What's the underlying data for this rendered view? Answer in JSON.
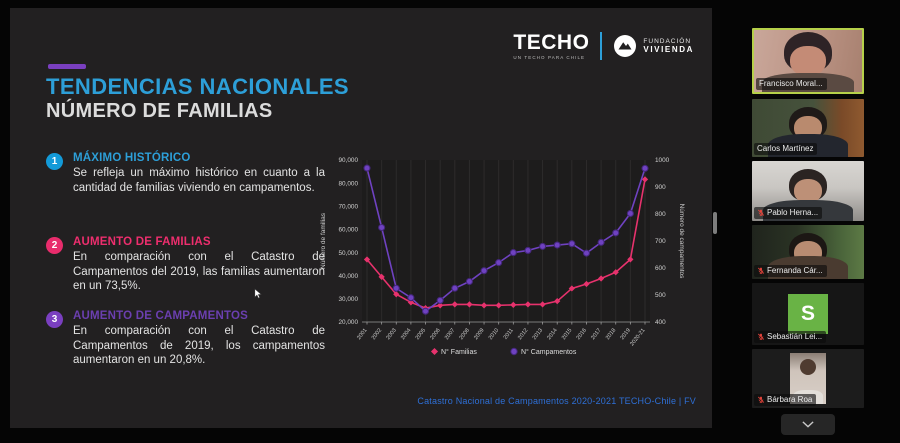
{
  "slide": {
    "accent_color": "#7a3fc0",
    "title": "TENDENCIAS NACIONALES",
    "title_color": "#2d9fd8",
    "subtitle": "NÚMERO DE FAMILIAS",
    "points": [
      {
        "number": "1",
        "heading": "MÁXIMO HISTÓRICO",
        "circle_color": "#139ad8",
        "heading_color": "#2d9fd8",
        "body": "Se refleja un máximo histórico en cuanto a la cantidad de familias viviendo en campamentos."
      },
      {
        "number": "2",
        "heading": "AUMENTO DE FAMILIAS",
        "circle_color": "#e82c6c",
        "heading_color": "#ee2e6e",
        "body": "En comparación con el Catastro de Campamentos del 2019, las familias aumentaron en un 73,5%."
      },
      {
        "number": "3",
        "heading": "AUMENTO DE CAMPAMENTOS",
        "circle_color": "#7a3fc0",
        "heading_color": "#6b3fb0",
        "body": "En comparación con el Catastro de Campamentos de 2019, los campamentos aumentaron en un 20,8%."
      }
    ],
    "caption": "Catastro Nacional de Campamentos 2020-2021 TECHO-Chile | FV",
    "logos": {
      "techo": "TECHO",
      "techo_tagline": "UN TECHO PARA CHILE",
      "fundacion_line1": "FUNDACIÓN",
      "fundacion_line2": "VIVIENDA"
    }
  },
  "chart_data": {
    "type": "line",
    "categories": [
      "2001",
      "2002",
      "2003",
      "2004",
      "2005",
      "2006",
      "2007",
      "2008",
      "2009",
      "2010",
      "2011",
      "2012",
      "2013",
      "2014",
      "2015",
      "2016",
      "2017",
      "2018",
      "2019",
      "2020-21"
    ],
    "series": [
      {
        "name": "N° Familias",
        "axis": "left",
        "color": "#e7326d",
        "marker": "diamond",
        "values": [
          47000,
          39500,
          32000,
          28500,
          26000,
          27200,
          27600,
          27600,
          27200,
          27200,
          27400,
          27600,
          27600,
          29000,
          34500,
          36400,
          38800,
          41500,
          47050,
          81643
        ]
      },
      {
        "name": "N° Campamentos",
        "axis": "right",
        "color": "#6f42c1",
        "marker": "circle",
        "values": [
          970,
          750,
          525,
          490,
          440,
          480,
          525,
          550,
          590,
          620,
          657,
          665,
          680,
          685,
          690,
          655,
          695,
          730,
          802,
          969
        ]
      }
    ],
    "ylabel_left": "Número de familias",
    "ylabel_right": "Número de campamentos",
    "ylim_left": [
      20000,
      90000
    ],
    "ylim_right": [
      400,
      1000
    ],
    "yticks_left": [
      "20,000",
      "30,000",
      "40,000",
      "50,000",
      "60,000",
      "70,000",
      "80,000",
      "90,000"
    ],
    "yticks_right": [
      "400",
      "500",
      "600",
      "700",
      "800",
      "900",
      "1000"
    ],
    "grid": "vertical",
    "legend_position": "bottom"
  },
  "participants": [
    {
      "name": "Francisco Moral...",
      "active_speaker": true,
      "muted": false,
      "video": true
    },
    {
      "name": "Carlos Martínez",
      "active_speaker": false,
      "muted": false,
      "video": true
    },
    {
      "name": "Pablo Herna...",
      "active_speaker": false,
      "muted": true,
      "video": true
    },
    {
      "name": "Fernanda Cár...",
      "active_speaker": false,
      "muted": true,
      "video": true
    },
    {
      "name": "Sebastián Lei...",
      "active_speaker": false,
      "muted": true,
      "video": false,
      "avatar_letter": "S",
      "avatar_color": "#69b345"
    },
    {
      "name": "Bárbara Roa",
      "active_speaker": false,
      "muted": true,
      "video": true
    }
  ],
  "sidebar": {
    "collapse_icon": "chevron-down"
  }
}
